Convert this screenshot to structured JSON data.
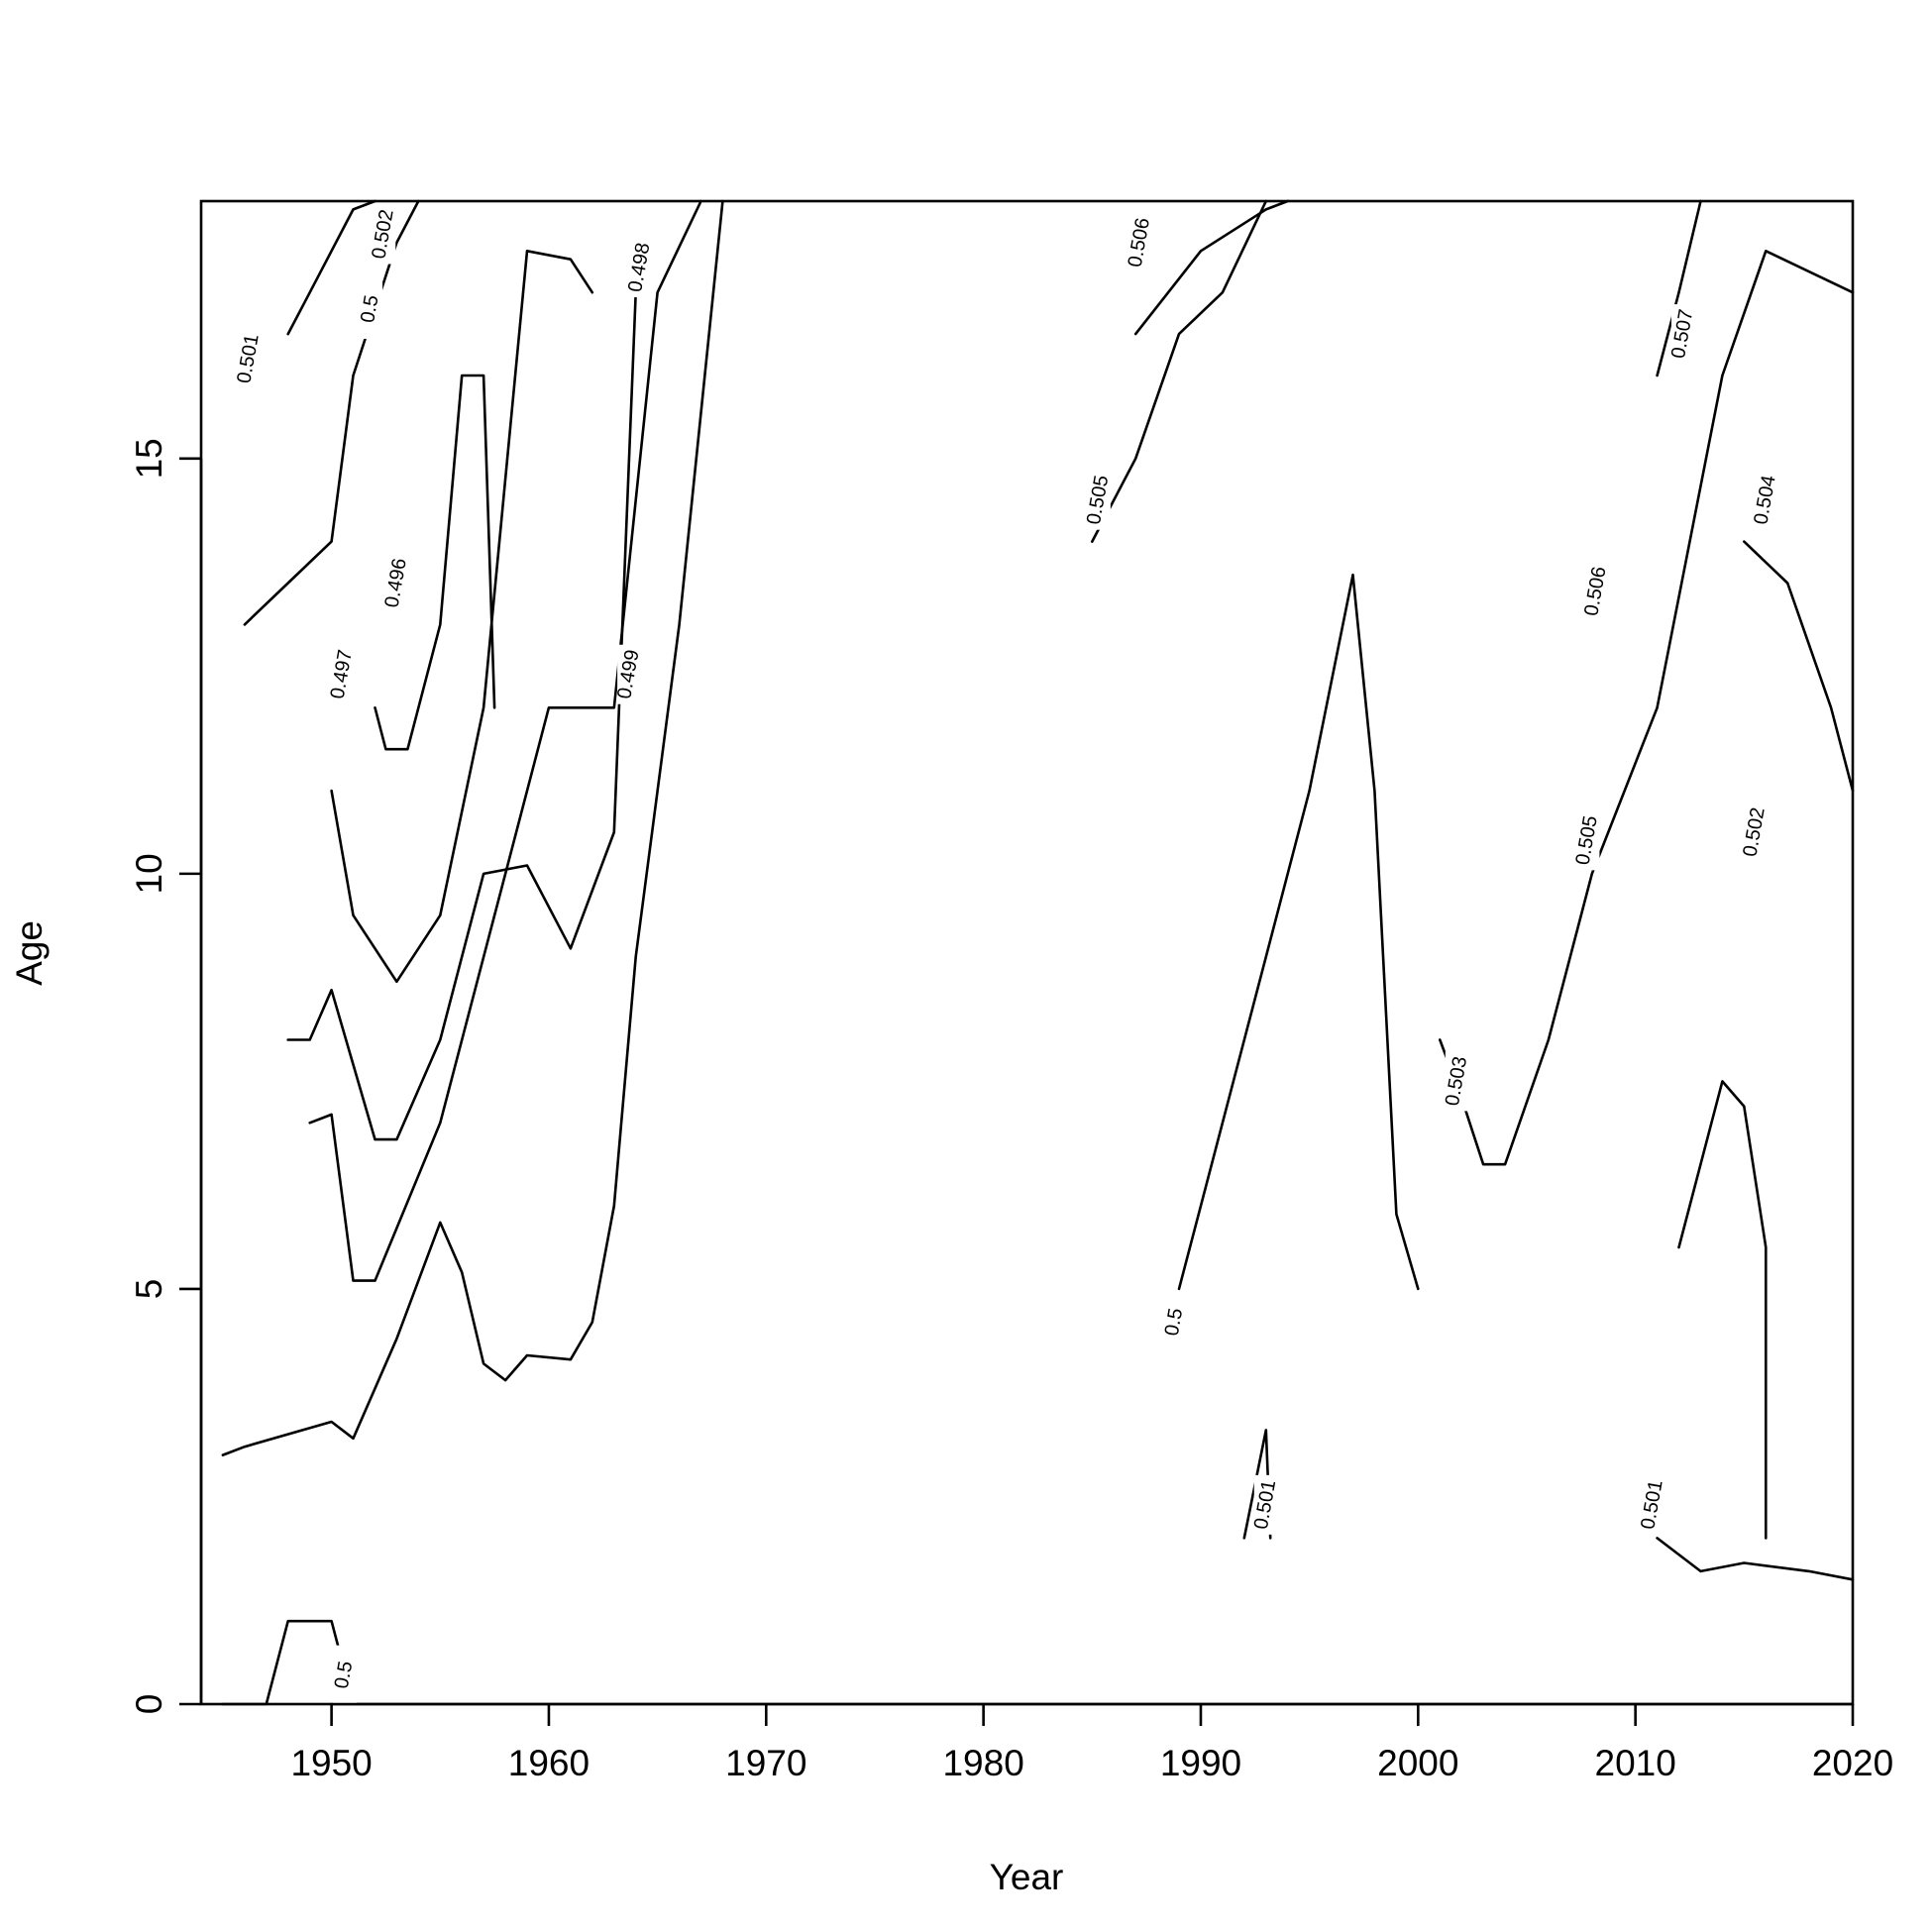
{
  "chart_data": {
    "type": "contour",
    "title": "",
    "xlabel": "Year",
    "ylabel": "Age",
    "xlim": [
      1944,
      2020
    ],
    "ylim": [
      0,
      18.1
    ],
    "x_ticks": [
      1950,
      1960,
      1970,
      1980,
      1990,
      2000,
      2010,
      2020
    ],
    "x_tick_labels": [
      "1950",
      "1960",
      "1970",
      "1980",
      "1990",
      "2000",
      "2010",
      "2020"
    ],
    "y_ticks": [
      0,
      5,
      10,
      15
    ],
    "y_tick_labels": [
      "0",
      "5",
      "10",
      "15"
    ],
    "grid": false,
    "legend": "none",
    "contours": [
      {
        "level": 0.5,
        "label": "0.5",
        "points": [
          [
            1945,
            3
          ],
          [
            1946,
            3.1
          ],
          [
            1950,
            3.4
          ],
          [
            1951,
            3.2
          ],
          [
            1953,
            4.4
          ],
          [
            1955,
            5.8
          ],
          [
            1956,
            5.2
          ],
          [
            1957,
            4.1
          ],
          [
            1958,
            3.9
          ],
          [
            1959,
            4.2
          ],
          [
            1961,
            4.15
          ],
          [
            1962,
            4.6
          ],
          [
            1963,
            6
          ],
          [
            1964,
            9
          ],
          [
            1966,
            13
          ],
          [
            1968,
            18.1
          ]
        ]
      },
      {
        "level": 0.5,
        "label": "0.5",
        "points": [
          [
            1945,
            0
          ],
          [
            1946.8,
            0
          ],
          [
            1947,
            0
          ],
          [
            1948,
            1
          ],
          [
            1950,
            1
          ],
          [
            1950.5,
            0.5
          ]
        ]
      },
      {
        "level": 0.5,
        "label": "0.5",
        "points": [
          [
            1989,
            5
          ],
          [
            1990,
            6
          ],
          [
            1991,
            7
          ],
          [
            1993,
            9
          ],
          [
            1995,
            11
          ],
          [
            1997,
            13.6
          ],
          [
            1998,
            11
          ],
          [
            1999,
            5.9
          ],
          [
            2000,
            5
          ]
        ]
      },
      {
        "level": 0.496,
        "label": "0.496",
        "points": [
          [
            1952,
            12
          ],
          [
            1952.5,
            11.5
          ],
          [
            1953.5,
            11.5
          ],
          [
            1955,
            13
          ],
          [
            1956,
            16
          ],
          [
            1957,
            16
          ],
          [
            1957.5,
            12
          ]
        ]
      },
      {
        "level": 0.497,
        "label": "0.497",
        "points": [
          [
            1950,
            11
          ],
          [
            1951,
            9.5
          ],
          [
            1953,
            8.7
          ],
          [
            1955,
            9.5
          ],
          [
            1957,
            12
          ],
          [
            1959,
            17.5
          ],
          [
            1961,
            17.4
          ],
          [
            1962,
            17
          ]
        ]
      },
      {
        "level": 0.498,
        "label": "0.498",
        "points": [
          [
            1948,
            8
          ],
          [
            1949,
            8
          ],
          [
            1950,
            8.6
          ],
          [
            1952,
            6.8
          ],
          [
            1953,
            6.8
          ],
          [
            1955,
            8
          ],
          [
            1957,
            10
          ],
          [
            1959,
            10.1
          ],
          [
            1961,
            9.1
          ],
          [
            1963,
            10.5
          ],
          [
            1964,
            17
          ]
        ]
      },
      {
        "level": 0.499,
        "label": "0.499",
        "points": [
          [
            1949,
            7
          ],
          [
            1950,
            7.1
          ],
          [
            1951,
            5.1
          ],
          [
            1952,
            5.1
          ],
          [
            1955,
            7
          ],
          [
            1958,
            10
          ],
          [
            1960,
            12
          ],
          [
            1963,
            12
          ],
          [
            1965,
            17
          ],
          [
            1967,
            18.1
          ]
        ]
      },
      {
        "level": 0.501,
        "label": "0.501",
        "points": [
          [
            1946,
            13
          ],
          [
            1948,
            13.5
          ],
          [
            1950,
            14
          ],
          [
            1951,
            16
          ],
          [
            1953,
            17.6
          ],
          [
            1954,
            18.1
          ]
        ]
      },
      {
        "level": 0.501,
        "label": "0.501",
        "points": [
          [
            1992,
            2
          ],
          [
            1993,
            3.3
          ],
          [
            1993.2,
            2
          ]
        ]
      },
      {
        "level": 0.501,
        "label": "0.501",
        "points": [
          [
            2011,
            2
          ],
          [
            2013,
            1.6
          ],
          [
            2015,
            1.7
          ],
          [
            2018,
            1.6
          ],
          [
            2020,
            1.5
          ]
        ]
      },
      {
        "level": 0.502,
        "label": "0.502",
        "points": [
          [
            1948,
            16.5
          ],
          [
            1949,
            17
          ],
          [
            1951,
            18
          ],
          [
            1952,
            18.1
          ]
        ]
      },
      {
        "level": 0.502,
        "label": "0.502",
        "points": [
          [
            2012,
            5.5
          ],
          [
            2014,
            7.5
          ],
          [
            2015,
            7.2
          ],
          [
            2016,
            5.5
          ],
          [
            2016,
            2
          ]
        ]
      },
      {
        "level": 0.503,
        "label": "0.503",
        "points": [
          [
            2001,
            8
          ],
          [
            2002,
            7.3
          ],
          [
            2003,
            6.5
          ],
          [
            2004,
            6.5
          ],
          [
            2006,
            8
          ],
          [
            2008,
            10
          ],
          [
            2011,
            12
          ],
          [
            2014,
            16
          ],
          [
            2016,
            17.5
          ],
          [
            2020,
            17
          ]
        ]
      },
      {
        "level": 0.504,
        "label": "0.504",
        "points": [
          [
            2015,
            14
          ],
          [
            2017,
            13.5
          ],
          [
            2019,
            12
          ],
          [
            2020,
            11
          ]
        ]
      },
      {
        "level": 0.505,
        "label": "0.505",
        "points": [
          [
            1985,
            14
          ],
          [
            1987,
            15
          ],
          [
            1989,
            16.5
          ],
          [
            1991,
            17
          ],
          [
            1993,
            18.1
          ]
        ]
      },
      {
        "level": 0.506,
        "label": "0.506",
        "points": [
          [
            1987,
            16.5
          ],
          [
            1990,
            17.5
          ],
          [
            1993,
            18
          ],
          [
            1994,
            18.1
          ]
        ]
      },
      {
        "level": 0.507,
        "label": "0.507",
        "points": [
          [
            2011,
            16
          ],
          [
            2012,
            17
          ],
          [
            2013,
            18.1
          ]
        ]
      }
    ],
    "contour_labels": [
      {
        "text": "0.5",
        "x": 1950.6,
        "y": 0.35
      },
      {
        "text": "0.501",
        "x": 1946.2,
        "y": 16.2
      },
      {
        "text": "0.5",
        "x": 1951.8,
        "y": 16.8
      },
      {
        "text": "0.502",
        "x": 1952.4,
        "y": 17.7
      },
      {
        "text": "0.496",
        "x": 1953,
        "y": 13.5
      },
      {
        "text": "0.497",
        "x": 1950.5,
        "y": 12.4
      },
      {
        "text": "0.499",
        "x": 1963.7,
        "y": 12.4
      },
      {
        "text": "0.498",
        "x": 1964.2,
        "y": 17.3
      },
      {
        "text": "0.506",
        "x": 1987.2,
        "y": 17.6
      },
      {
        "text": "0.505",
        "x": 1985.3,
        "y": 14.5
      },
      {
        "text": "0.5",
        "x": 1988.8,
        "y": 4.6
      },
      {
        "text": "0.501",
        "x": 1993,
        "y": 2.4
      },
      {
        "text": "0.503",
        "x": 2001.8,
        "y": 7.5
      },
      {
        "text": "0.505",
        "x": 2007.8,
        "y": 10.4
      },
      {
        "text": "0.506",
        "x": 2008.2,
        "y": 13.4
      },
      {
        "text": "0.507",
        "x": 2012.2,
        "y": 16.5
      },
      {
        "text": "0.504",
        "x": 2016,
        "y": 14.5
      },
      {
        "text": "0.502",
        "x": 2015.5,
        "y": 10.5
      },
      {
        "text": "0.501",
        "x": 2010.8,
        "y": 2.4
      }
    ]
  }
}
